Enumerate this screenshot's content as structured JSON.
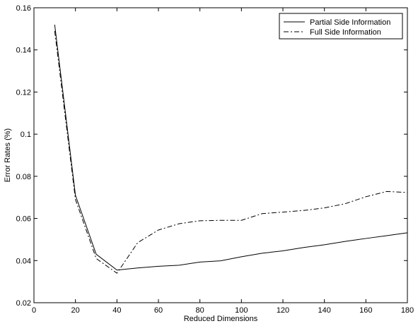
{
  "chart_data": {
    "type": "line",
    "title": "",
    "xlabel": "Reduced Dimensions",
    "ylabel": "Error Rates (%)",
    "xlim": [
      0,
      180
    ],
    "ylim": [
      0.02,
      0.16
    ],
    "xticks": [
      0,
      20,
      40,
      60,
      80,
      100,
      120,
      140,
      160,
      180
    ],
    "xtick_labels": [
      "0",
      "20",
      "40",
      "60",
      "80",
      "100",
      "120",
      "140",
      "160",
      "180"
    ],
    "yticks": [
      0.02,
      0.04,
      0.06,
      0.08,
      0.1,
      0.12,
      0.14,
      0.16
    ],
    "ytick_labels": [
      "0.02",
      "0.04",
      "0.06",
      "0.08",
      "0.1",
      "0.12",
      "0.14",
      "0.16"
    ],
    "grid": false,
    "legend_position": "top-right",
    "x": [
      10,
      20,
      30,
      40,
      50,
      60,
      70,
      80,
      90,
      100,
      110,
      120,
      130,
      140,
      150,
      160,
      170,
      180
    ],
    "series": [
      {
        "name": "Partial Side Information",
        "style": "solid",
        "color": "#000000",
        "values": [
          0.152,
          0.071,
          0.043,
          0.0355,
          0.0365,
          0.0373,
          0.0378,
          0.0393,
          0.0399,
          0.0418,
          0.0435,
          0.0446,
          0.0462,
          0.0475,
          0.0491,
          0.0505,
          0.0518,
          0.0532
        ]
      },
      {
        "name": "Full Side Information",
        "style": "dashdot",
        "color": "#000000",
        "values": [
          0.149,
          0.069,
          0.041,
          0.034,
          0.0485,
          0.0545,
          0.0575,
          0.0589,
          0.0591,
          0.0591,
          0.0623,
          0.063,
          0.0638,
          0.065,
          0.067,
          0.0703,
          0.0728,
          0.0723
        ]
      }
    ]
  }
}
